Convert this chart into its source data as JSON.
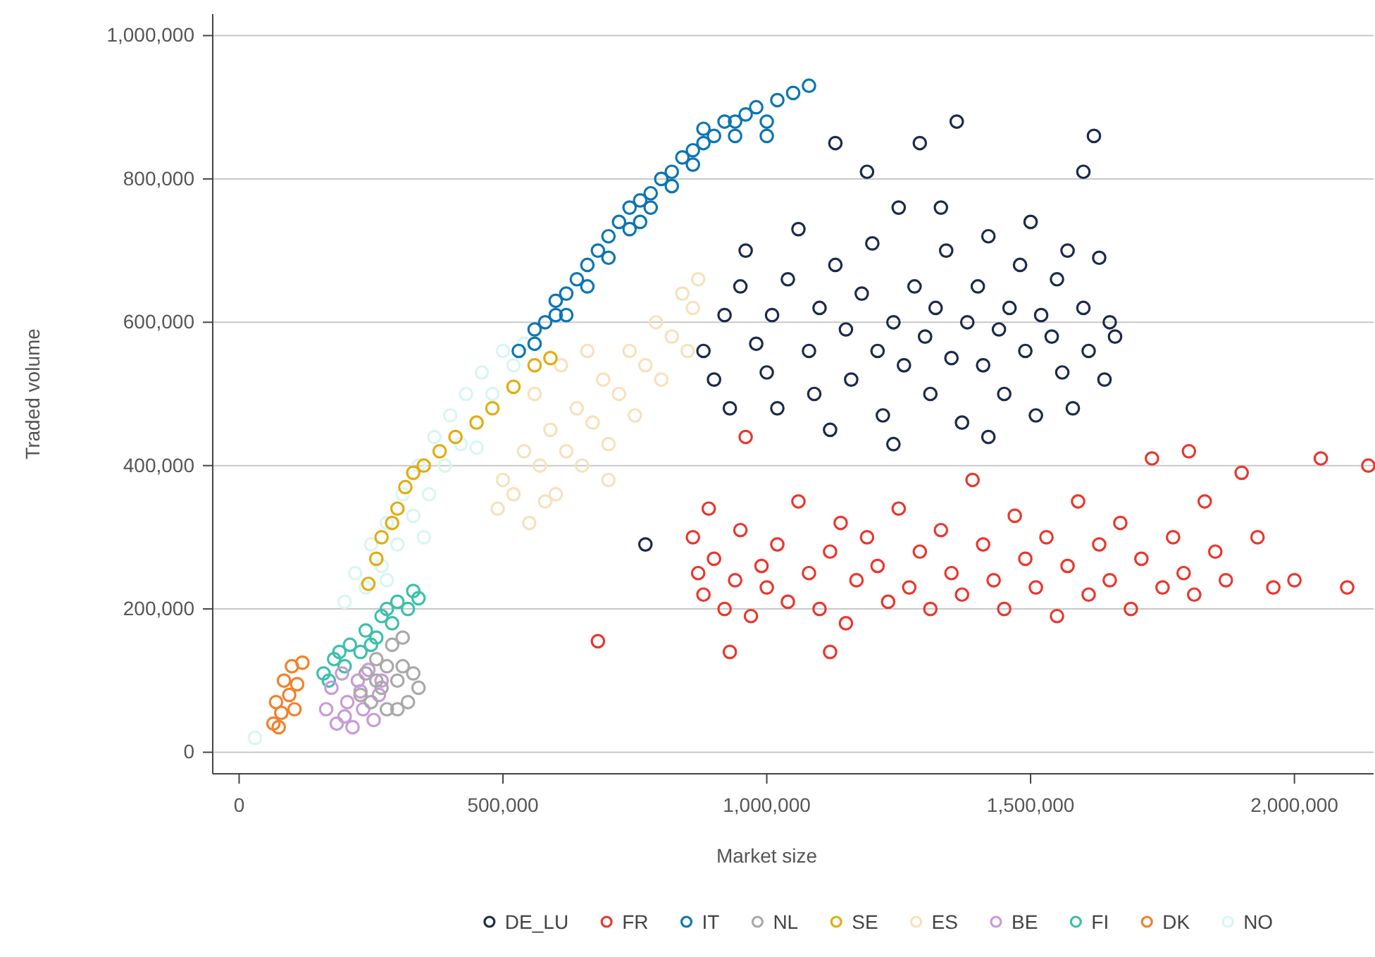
{
  "chart_data": {
    "type": "scatter",
    "xlabel": "Market size",
    "ylabel": "Traded volume",
    "marker": "circle",
    "grid": "y",
    "legend": "bottom",
    "xlim": [
      -50000,
      2150000
    ],
    "ylim": [
      -30000,
      1030000
    ],
    "xticks": [
      0,
      {
        "value": 500000,
        "label": "500,000"
      },
      {
        "value": 1000000,
        "label": "1,000,000"
      },
      {
        "value": 1500000,
        "label": "1,500,000"
      },
      {
        "value": 2000000,
        "label": "2,000,000"
      }
    ],
    "yticks": [
      0,
      {
        "value": 200000,
        "label": "200,000"
      },
      {
        "value": 400000,
        "label": "400,000"
      },
      {
        "value": 600000,
        "label": "600,000"
      },
      {
        "value": 800000,
        "label": "800,000"
      },
      {
        "value": 1000000,
        "label": "1,000,000"
      }
    ],
    "series": [
      {
        "name": "DE_LU",
        "color": "#1b2a4a",
        "x": [
          880000,
          900000,
          920000,
          930000,
          950000,
          960000,
          980000,
          1000000,
          1010000,
          1020000,
          1040000,
          1060000,
          1080000,
          1090000,
          1100000,
          1120000,
          1130000,
          1150000,
          1160000,
          1180000,
          1200000,
          1210000,
          1220000,
          1240000,
          1250000,
          1260000,
          1280000,
          1290000,
          1300000,
          1310000,
          1320000,
          1340000,
          1350000,
          1360000,
          1370000,
          1380000,
          1400000,
          1410000,
          1420000,
          1440000,
          1450000,
          1460000,
          1480000,
          1490000,
          1500000,
          1510000,
          1520000,
          1540000,
          1550000,
          1560000,
          1570000,
          1580000,
          1600000,
          1610000,
          1620000,
          1630000,
          1640000,
          1650000,
          1660000,
          1600000,
          1330000,
          1190000,
          1130000,
          770000,
          1420000,
          1240000
        ],
        "values": [
          560000,
          520000,
          610000,
          480000,
          650000,
          700000,
          570000,
          530000,
          610000,
          480000,
          660000,
          730000,
          560000,
          500000,
          620000,
          450000,
          680000,
          590000,
          520000,
          640000,
          710000,
          560000,
          470000,
          600000,
          760000,
          540000,
          650000,
          850000,
          580000,
          500000,
          620000,
          700000,
          550000,
          880000,
          460000,
          600000,
          650000,
          540000,
          720000,
          590000,
          500000,
          620000,
          680000,
          560000,
          740000,
          470000,
          610000,
          580000,
          660000,
          530000,
          700000,
          480000,
          620000,
          560000,
          860000,
          690000,
          520000,
          600000,
          580000,
          810000,
          760000,
          810000,
          850000,
          290000,
          440000,
          430000
        ]
      },
      {
        "name": "FR",
        "color": "#e8372d",
        "x": [
          860000,
          870000,
          880000,
          890000,
          900000,
          920000,
          940000,
          950000,
          970000,
          990000,
          1000000,
          1020000,
          1040000,
          1060000,
          1080000,
          1100000,
          1120000,
          1140000,
          1150000,
          1170000,
          1190000,
          1210000,
          1230000,
          1250000,
          1270000,
          1290000,
          1310000,
          1330000,
          1350000,
          1370000,
          1390000,
          1410000,
          1430000,
          1450000,
          1470000,
          1490000,
          1510000,
          1530000,
          1550000,
          1570000,
          1590000,
          1610000,
          1630000,
          1650000,
          1670000,
          1690000,
          1710000,
          1730000,
          1750000,
          1770000,
          1790000,
          1810000,
          1830000,
          1850000,
          1870000,
          1900000,
          1930000,
          1960000,
          2000000,
          2050000,
          2100000,
          2140000,
          680000,
          1120000,
          930000,
          960000,
          1800000
        ],
        "values": [
          300000,
          250000,
          220000,
          340000,
          270000,
          200000,
          240000,
          310000,
          190000,
          260000,
          230000,
          290000,
          210000,
          350000,
          250000,
          200000,
          280000,
          320000,
          180000,
          240000,
          300000,
          260000,
          210000,
          340000,
          230000,
          280000,
          200000,
          310000,
          250000,
          220000,
          380000,
          290000,
          240000,
          200000,
          330000,
          270000,
          230000,
          300000,
          190000,
          260000,
          350000,
          220000,
          290000,
          240000,
          320000,
          200000,
          270000,
          410000,
          230000,
          300000,
          250000,
          220000,
          350000,
          280000,
          240000,
          390000,
          300000,
          230000,
          240000,
          410000,
          230000,
          400000,
          155000,
          140000,
          140000,
          440000,
          420000
        ]
      },
      {
        "name": "IT",
        "color": "#0b75b3",
        "x": [
          530000,
          560000,
          580000,
          600000,
          620000,
          640000,
          660000,
          680000,
          700000,
          720000,
          740000,
          760000,
          780000,
          800000,
          820000,
          840000,
          860000,
          880000,
          900000,
          920000,
          940000,
          960000,
          980000,
          1000000,
          1020000,
          1050000,
          1080000,
          700000,
          760000,
          820000,
          880000,
          660000,
          600000,
          940000,
          1000000,
          560000,
          780000,
          620000,
          740000,
          860000
        ],
        "values": [
          560000,
          590000,
          600000,
          630000,
          610000,
          660000,
          650000,
          700000,
          690000,
          740000,
          730000,
          770000,
          760000,
          800000,
          790000,
          830000,
          820000,
          850000,
          860000,
          880000,
          860000,
          890000,
          900000,
          880000,
          910000,
          920000,
          930000,
          720000,
          740000,
          810000,
          870000,
          680000,
          610000,
          880000,
          860000,
          570000,
          780000,
          640000,
          760000,
          840000
        ]
      },
      {
        "name": "NL",
        "color": "#a9a9a9",
        "x": [
          230000,
          240000,
          250000,
          260000,
          270000,
          280000,
          290000,
          300000,
          310000,
          320000,
          330000,
          340000,
          280000,
          300000,
          260000,
          310000
        ],
        "values": [
          80000,
          110000,
          70000,
          130000,
          90000,
          60000,
          150000,
          100000,
          120000,
          70000,
          110000,
          90000,
          120000,
          60000,
          100000,
          160000
        ]
      },
      {
        "name": "SE",
        "color": "#e2ad10",
        "x": [
          245000,
          260000,
          270000,
          290000,
          300000,
          315000,
          330000,
          350000,
          380000,
          410000,
          450000,
          480000,
          520000,
          560000,
          590000
        ],
        "values": [
          235000,
          270000,
          300000,
          320000,
          340000,
          370000,
          390000,
          400000,
          420000,
          440000,
          460000,
          480000,
          510000,
          540000,
          550000
        ]
      },
      {
        "name": "ES",
        "color": "#f7e1bc",
        "x": [
          490000,
          500000,
          520000,
          540000,
          550000,
          570000,
          590000,
          600000,
          620000,
          640000,
          650000,
          670000,
          690000,
          700000,
          720000,
          740000,
          750000,
          770000,
          790000,
          800000,
          820000,
          840000,
          850000,
          860000,
          870000,
          560000,
          610000,
          660000,
          580000,
          700000
        ],
        "values": [
          340000,
          380000,
          360000,
          420000,
          320000,
          400000,
          450000,
          360000,
          420000,
          480000,
          400000,
          460000,
          520000,
          430000,
          500000,
          560000,
          470000,
          540000,
          600000,
          520000,
          580000,
          640000,
          560000,
          620000,
          660000,
          500000,
          540000,
          560000,
          350000,
          380000
        ]
      },
      {
        "name": "BE",
        "color": "#c99ad8",
        "x": [
          165000,
          175000,
          185000,
          195000,
          205000,
          215000,
          225000,
          235000,
          245000,
          255000,
          265000,
          270000,
          200000,
          230000
        ],
        "values": [
          60000,
          90000,
          40000,
          110000,
          70000,
          35000,
          100000,
          60000,
          115000,
          45000,
          80000,
          100000,
          50000,
          85000
        ]
      },
      {
        "name": "FI",
        "color": "#3dbfac",
        "x": [
          160000,
          170000,
          180000,
          200000,
          210000,
          230000,
          240000,
          260000,
          270000,
          290000,
          300000,
          320000,
          330000,
          340000,
          190000,
          250000,
          280000
        ],
        "values": [
          110000,
          100000,
          130000,
          120000,
          150000,
          140000,
          170000,
          160000,
          190000,
          180000,
          210000,
          200000,
          225000,
          215000,
          140000,
          150000,
          200000
        ]
      },
      {
        "name": "DK",
        "color": "#f3802b",
        "x": [
          65000,
          70000,
          80000,
          85000,
          95000,
          100000,
          110000,
          120000,
          75000,
          105000
        ],
        "values": [
          40000,
          70000,
          55000,
          100000,
          80000,
          120000,
          95000,
          125000,
          35000,
          60000
        ]
      },
      {
        "name": "NO",
        "color": "#d7f6f2",
        "x": [
          200000,
          220000,
          240000,
          250000,
          270000,
          280000,
          300000,
          310000,
          330000,
          340000,
          360000,
          370000,
          390000,
          400000,
          420000,
          430000,
          450000,
          460000,
          480000,
          500000,
          520000,
          540000,
          30000,
          280000,
          350000
        ],
        "values": [
          210000,
          250000,
          230000,
          290000,
          260000,
          320000,
          290000,
          360000,
          330000,
          400000,
          360000,
          440000,
          400000,
          470000,
          430000,
          500000,
          425000,
          530000,
          500000,
          560000,
          540000,
          570000,
          20000,
          240000,
          300000
        ]
      }
    ]
  }
}
